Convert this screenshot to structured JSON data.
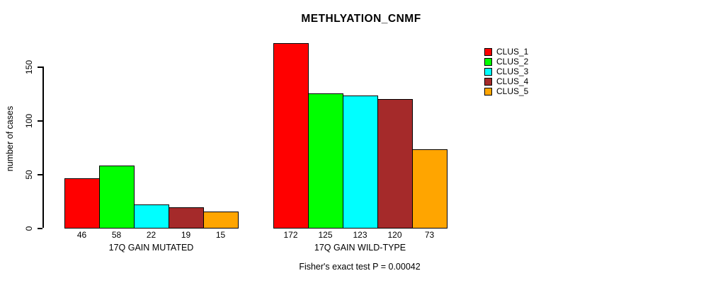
{
  "chart_data": {
    "type": "bar",
    "title": "METHLYATION_CNMF",
    "ylabel": "number of cases",
    "xlabel": "",
    "yticks": [
      0,
      50,
      100,
      150
    ],
    "ylim": [
      0,
      172
    ],
    "grid": false,
    "legend_position": "right-outside",
    "annotation": "Fisher's exact test P = 0.00042",
    "bar_outline_color": "#000000",
    "background_color": "#ffffff",
    "groups": [
      {
        "label": "17Q GAIN MUTATED",
        "values": [
          46,
          58,
          22,
          19,
          15
        ]
      },
      {
        "label": "17Q GAIN WILD-TYPE",
        "values": [
          172,
          125,
          123,
          120,
          73
        ]
      }
    ],
    "series": [
      {
        "name": "CLUS_1",
        "color": "#ff0000"
      },
      {
        "name": "CLUS_2",
        "color": "#00ff00"
      },
      {
        "name": "CLUS_3",
        "color": "#00ffff"
      },
      {
        "name": "CLUS_4",
        "color": "#a52a2a"
      },
      {
        "name": "CLUS_5",
        "color": "#ffa500"
      }
    ]
  }
}
